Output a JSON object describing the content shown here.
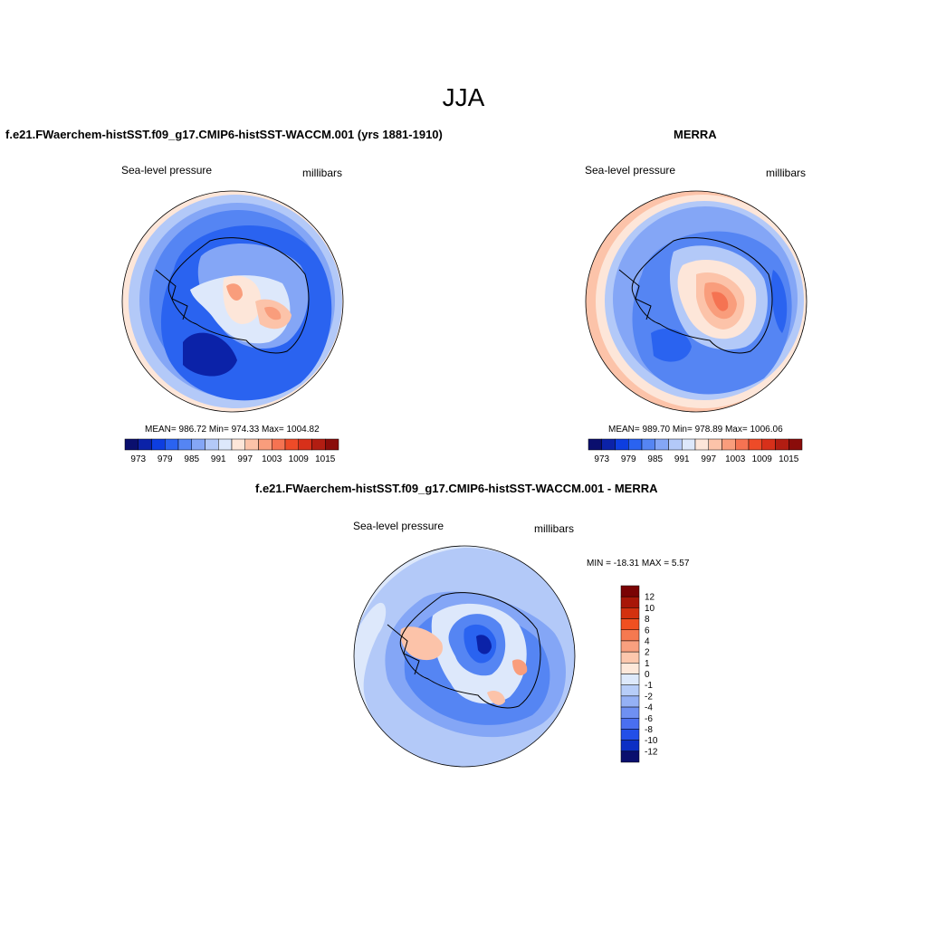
{
  "figure": {
    "title": "JJA"
  },
  "panels": {
    "model": {
      "title": "f.e21.FWaerchem-histSST.f09_g17.CMIP6-histSST-WACCM.001 (yrs 1881-1910)",
      "left_label": "Sea-level pressure",
      "right_label": "millibars",
      "stats": "MEAN= 986.72  Min= 974.33  Max= 1004.82"
    },
    "obs": {
      "title": "MERRA",
      "left_label": "Sea-level pressure",
      "right_label": "millibars",
      "stats": "MEAN= 989.70  Min= 978.89  Max= 1006.06"
    },
    "diff": {
      "title": "f.e21.FWaerchem-histSST.f09_g17.CMIP6-histSST-WACCM.001 - MERRA",
      "left_label": "Sea-level pressure",
      "right_label": "millibars",
      "stats": "MIN = -18.31 MAX =   5.57"
    }
  },
  "colorbar_abs": {
    "colors": [
      "#0a0f6e",
      "#0b22a8",
      "#0d3ee0",
      "#2a63f0",
      "#5585f3",
      "#84a6f6",
      "#b3c9f8",
      "#dde8fb",
      "#fde6d9",
      "#fcc3a9",
      "#f99d7c",
      "#f57352",
      "#ee4b28",
      "#d7301a",
      "#b21d12",
      "#8a0c0a"
    ],
    "tick_labels": [
      "973",
      "979",
      "985",
      "991",
      "997",
      "1003",
      "1009",
      "1015"
    ]
  },
  "colorbar_diff": {
    "colors": [
      "#7a0304",
      "#a81708",
      "#d3310f",
      "#f05020",
      "#f57950",
      "#f9a07f",
      "#fcc7ad",
      "#fde8da",
      "#dde9fb",
      "#b7cdf8",
      "#95b1f5",
      "#6f90f2",
      "#4a6ff0",
      "#224fe8",
      "#0c2fc4",
      "#0a0f6e"
    ],
    "tick_labels": [
      "12",
      "10",
      "8",
      "6",
      "4",
      "2",
      "1",
      "0",
      "-1",
      "-2",
      "-4",
      "-6",
      "-8",
      "-10",
      "-12"
    ]
  },
  "map_colors": {
    "deep": "#0b22a8",
    "dark": "#2a63f0",
    "mid": "#5585f3",
    "light": "#84a6f6",
    "pale": "#b3c9f8",
    "paler": "#dde8fb",
    "warm1": "#fde6d9",
    "warm2": "#fcc3a9",
    "warm3": "#f99d7c",
    "warm4": "#f57352",
    "coast": "#000000"
  }
}
